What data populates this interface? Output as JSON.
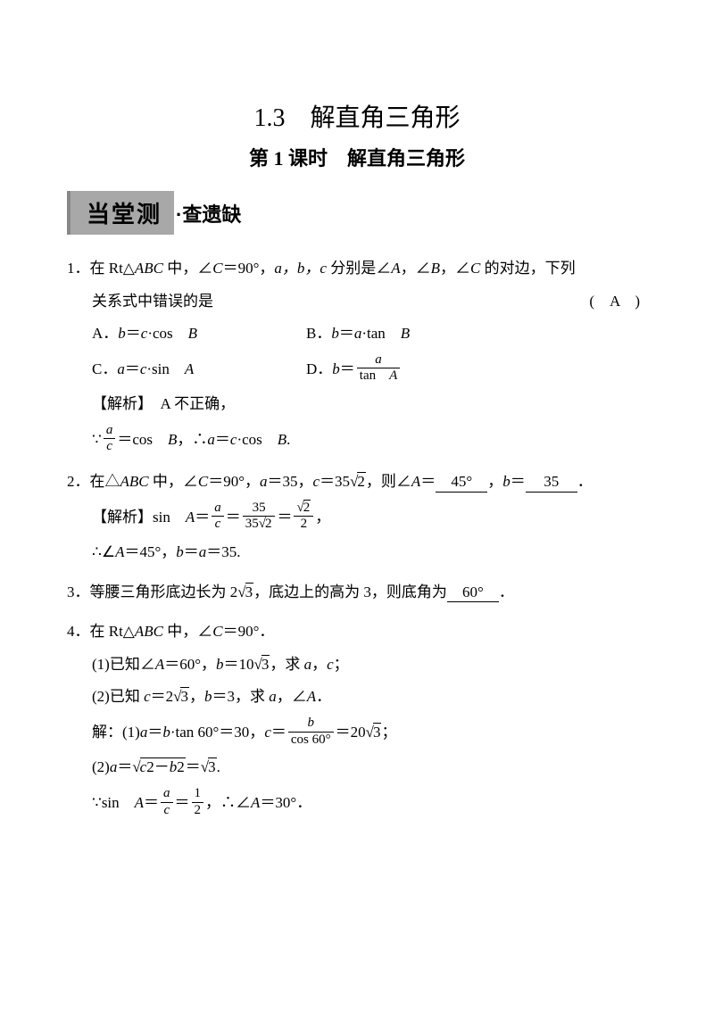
{
  "header": {
    "title": "1.3　解直角三角形",
    "subtitle": "第 1 课时　解直角三角形"
  },
  "banner": {
    "main": "当堂测",
    "suffix": "·查遗缺"
  },
  "q1": {
    "num": "1．",
    "stem_a": "在 Rt△",
    "stem_abc": "ABC",
    "stem_b": " 中，∠",
    "stem_c_var": "C",
    "stem_c": "＝90°，",
    "stem_vars": "a，b，c",
    "stem_d": " 分别是∠",
    "stem_A": "A",
    "stem_e": "，∠",
    "stem_B": "B",
    "stem_f": "，∠",
    "stem_C2": "C",
    "stem_g": " 的对边，下列",
    "stem_h": "关系式中错误的是",
    "answer": "(　A　)",
    "optA": "A．",
    "optA_eq_l": "b",
    "optA_eq_m": "＝",
    "optA_eq_r1": "c",
    "optA_eq_r2": "·cos　",
    "optA_eq_r3": "B",
    "optB": "B．",
    "optB_eq_l": "b",
    "optB_eq_m": "＝",
    "optB_eq_r1": "a",
    "optB_eq_r2": "·tan　",
    "optB_eq_r3": "B",
    "optC": "C．",
    "optC_eq_l": "a",
    "optC_eq_m": "＝",
    "optC_eq_r1": "c",
    "optC_eq_r2": "·sin　",
    "optC_eq_r3": "A",
    "optD": "D．",
    "optD_eq_l": "b",
    "optD_eq_m": "＝",
    "optD_frac_top": "a",
    "optD_frac_bot_a": "tan　",
    "optD_frac_bot_b": "A",
    "analysis_label": "【解析】",
    "analysis_a": "　A 不正确，",
    "analysis_b1": "∵",
    "analysis_frac_top": "a",
    "analysis_frac_bot": "c",
    "analysis_b2": "＝cos　",
    "analysis_b3": "B",
    "analysis_b4": "，∴",
    "analysis_b5": "a",
    "analysis_b6": "＝",
    "analysis_b7": "c",
    "analysis_b8": "·cos　",
    "analysis_b9": "B",
    "analysis_b10": "."
  },
  "q2": {
    "num": "2．",
    "stem_a": "在△",
    "stem_abc": "ABC",
    "stem_b": " 中，∠",
    "stem_C": "C",
    "stem_c": "＝90°，",
    "stem_var_a": "a",
    "stem_d": "＝35，",
    "stem_var_c": "c",
    "stem_e": "＝35",
    "sqrt2_a": "2",
    "stem_f": "，则∠",
    "stem_A": "A",
    "stem_g": "＝",
    "blank1": "45°",
    "stem_h": "，",
    "stem_var_b": "b",
    "stem_i": "＝",
    "blank2": "35",
    "stem_j": "．",
    "analysis_label": "【解析】",
    "ana_a": "sin　",
    "ana_A": "A",
    "ana_b": "＝",
    "frac1_top": "a",
    "frac1_bot": "c",
    "ana_c": "＝",
    "frac2_top": "35",
    "frac2_bot_a": "35",
    "frac2_bot_sqrt": "2",
    "ana_d": "＝",
    "frac3_top_sqrt": "2",
    "frac3_bot": "2",
    "ana_e": "，",
    "ana2_a": "∴∠",
    "ana2_A": "A",
    "ana2_b": "＝45°，",
    "ana2_var_b": "b",
    "ana2_c": "＝",
    "ana2_var_a": "a",
    "ana2_d": "＝35."
  },
  "q3": {
    "num": "3．",
    "stem_a": "等腰三角形底边长为 2",
    "sqrt3": "3",
    "stem_b": "，底边上的高为 3，则底角为",
    "blank": "60°",
    "stem_c": "．"
  },
  "q4": {
    "num": "4．",
    "stem_a": "在 Rt△",
    "stem_abc": "ABC",
    "stem_b": " 中，∠",
    "stem_C": "C",
    "stem_c": "＝90°．",
    "p1_a": "(1)已知∠",
    "p1_A": "A",
    "p1_b": "＝60°，",
    "p1_var_b": "b",
    "p1_c": "＝10",
    "p1_sqrt3": "3",
    "p1_d": "，求 ",
    "p1_var_a": "a",
    "p1_e": "，",
    "p1_var_c": "c",
    "p1_f": "；",
    "p2_a": "(2)已知 ",
    "p2_var_c": "c",
    "p2_b": "＝2",
    "p2_sqrt3": "3",
    "p2_c": "，",
    "p2_var_b": "b",
    "p2_d": "＝3，求 ",
    "p2_var_a": "a",
    "p2_e": "，∠",
    "p2_A": "A",
    "p2_f": "．",
    "sol_label": "解：",
    "s1_a": "(1)",
    "s1_var_a": "a",
    "s1_b": "＝",
    "s1_var_b": "b",
    "s1_c": "·tan 60°＝30，",
    "s1_var_c": "c",
    "s1_d": "＝",
    "s1_frac_top": "b",
    "s1_frac_bot": "cos 60°",
    "s1_e": "＝20",
    "s1_sqrt3": "3",
    "s1_f": "；",
    "s2_a": "(2)",
    "s2_var_a": "a",
    "s2_b": "＝",
    "s2_sqrt_in_a": "c",
    "s2_sqrt_in_b": "2－",
    "s2_sqrt_in_c": "b",
    "s2_sqrt_in_d": "2",
    "s2_c": "＝",
    "s2_sqrt3": "3",
    "s2_d": ".",
    "s3_a": "∵sin　",
    "s3_A": "A",
    "s3_b": "＝",
    "s3_frac1_top": "a",
    "s3_frac1_bot": "c",
    "s3_c": "＝",
    "s3_frac2_top": "1",
    "s3_frac2_bot": "2",
    "s3_d": "，∴∠",
    "s3_A2": "A",
    "s3_e": "＝30°．"
  }
}
